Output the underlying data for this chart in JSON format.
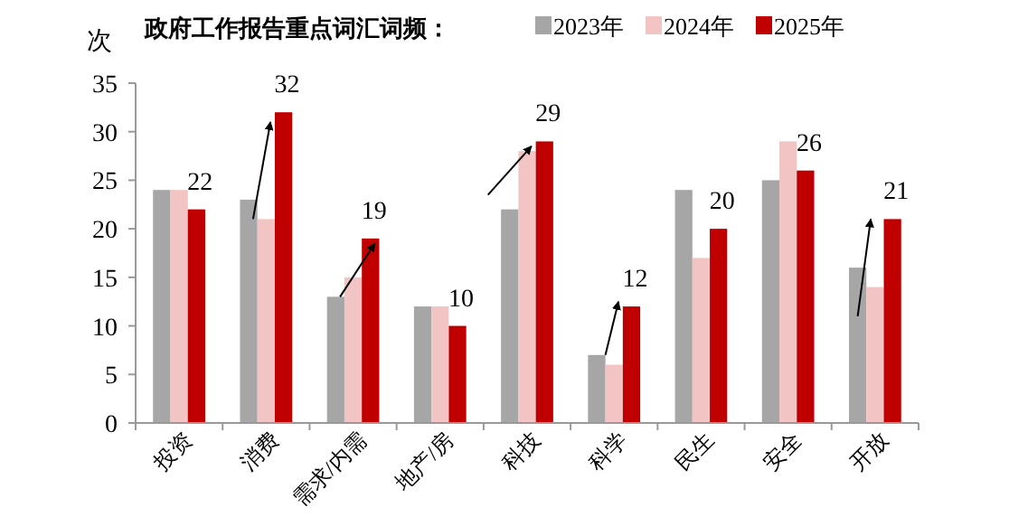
{
  "chart_data": {
    "type": "bar",
    "title": "政府工作报告重点词汇词频：",
    "ylabel": "次",
    "categories": [
      "投资",
      "消费",
      "需求/内需",
      "地产/房",
      "科技",
      "科学",
      "民生",
      "安全",
      "开放"
    ],
    "series": [
      {
        "name": "2023年",
        "color": "#a6a6a6",
        "values": [
          24,
          23,
          13,
          12,
          22,
          7,
          24,
          25,
          16
        ]
      },
      {
        "name": "2024年",
        "color": "#f2c4c4",
        "values": [
          24,
          21,
          15,
          12,
          28,
          6,
          17,
          29,
          14
        ]
      },
      {
        "name": "2025年",
        "color": "#c00000",
        "values": [
          22,
          32,
          19,
          10,
          29,
          12,
          20,
          26,
          21
        ],
        "value_labels": [
          "22",
          "32",
          "19",
          "10",
          "29",
          "12",
          "20",
          "26",
          "21"
        ]
      }
    ],
    "ylim": [
      0,
      35
    ],
    "yticks": [
      0,
      5,
      10,
      15,
      20,
      25,
      30,
      35
    ],
    "grid": false,
    "legend": "top right"
  }
}
